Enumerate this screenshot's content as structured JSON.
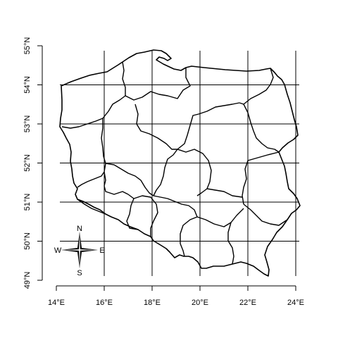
{
  "map": {
    "x_axis": {
      "ticks": [
        14,
        16,
        18,
        20,
        22,
        24
      ],
      "labels": [
        "14°E",
        "16°E",
        "18°E",
        "20°E",
        "22°E",
        "24°E"
      ]
    },
    "y_axis": {
      "ticks": [
        49,
        50,
        51,
        52,
        53,
        54,
        55
      ],
      "labels": [
        "49°N",
        "50°N",
        "51°N",
        "52°N",
        "53°N",
        "54°N",
        "55°N"
      ]
    },
    "graticule_lon": [
      16,
      18,
      20,
      22,
      24
    ],
    "graticule_lat": [
      50,
      51,
      52,
      53,
      54
    ],
    "compass": {
      "north": "N",
      "south": "S",
      "east": "E",
      "west": "W"
    }
  }
}
